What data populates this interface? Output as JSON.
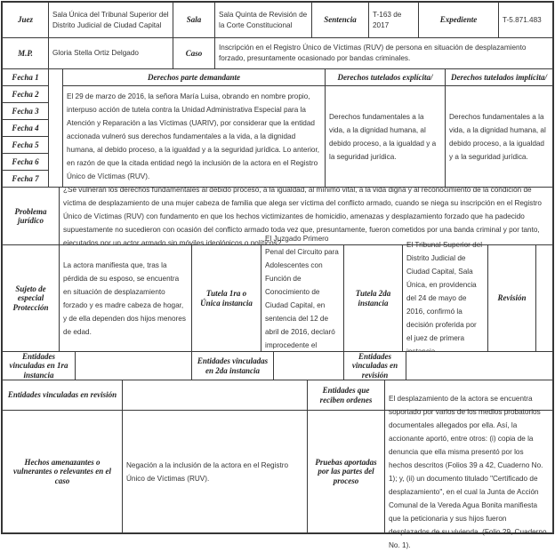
{
  "header": {
    "juez_label": "Juez",
    "juez_value": "Sala Única del Tribunal Superior del Distrito Judicial de Ciudad Capital",
    "sala_label": "Sala",
    "sala_value": "Sala Quinta de Revisión de la Corte Constitucional",
    "sentencia_label": "Sentencia",
    "sentencia_value": "T-163 de 2017",
    "expediente_label": "Expediente",
    "expediente_value": "T-5.871.483",
    "mp_label": "M.P.",
    "mp_value": "Gloria Stella Ortiz Delgado",
    "caso_label": "Caso",
    "caso_value": "Inscripción en el Registro Único de Víctimas (RUV) de persona en situación de desplazamiento forzado, presuntamente ocasionado por bandas criminales."
  },
  "fechas": [
    "Fecha 1",
    "Fecha 2",
    "Fecha 3",
    "Fecha 4",
    "Fecha 5",
    "Fecha 6",
    "Fecha 7"
  ],
  "derechos": {
    "demandante_label": "Derechos parte demandante",
    "explicita_label": "Derechos tutelados explícita/",
    "implicita_label": "Derechos tutelados implícita/",
    "demandante_value": "El 29 de marzo de 2016, la señora María Luisa, obrando en nombre propio, interpuso acción de tutela contra la Unidad Administrativa Especial para la Atención y Reparación a las Víctimas (UARIV), por considerar que la entidad accionada vulneró sus derechos fundamentales a la vida, a la dignidad humana, al debido proceso, a la igualdad y a la seguridad jurídica. Lo anterior, en razón de que la citada entidad negó la inclusión de la actora en el Registro Único de Víctimas (RUV).",
    "explicita_value": "Derechos fundamentales a la vida, a la dignidad humana, al debido proceso, a la igualdad y a la seguridad jurídica.",
    "implicita_value": "Derechos fundamentales a la vida, a la dignidad humana, al debido proceso, a la igualdad y a la seguridad jurídica."
  },
  "problema": {
    "label": "Problema jurídico",
    "value": "¿Se vulneran los derechos fundamentales al debido proceso, a la igualdad, al mínimo vital, a la vida digna y al reconocimiento de la condición de víctima de desplazamiento de una mujer cabeza de familia que alega ser víctima del conflicto armado, cuando se niega su inscripción en el Registro Único de Víctimas (RUV) con fundamento en que los hechos victimizantes de homicidio, amenazas y desplazamiento forzado que ha padecido supuestamente no sucedieron con ocasión del conflicto armado toda vez que, presuntamente, fueron cometidos por una banda criminal y por tanto, ejecutados por un actor armado sin móviles ideológicos o políticos?"
  },
  "sujeto": {
    "label": "Sujeto de especial Protección",
    "value": "La actora manifiesta que, tras la pérdida de su esposo, se encuentra en situación de desplazamiento forzado y es madre cabeza de hogar, y de ella dependen dos hijos menores de edad.",
    "tutela1_label": "Tutela 1ra o Única instancia",
    "tutela1_value": "El Juzgado Primero Penal del Circuito para Adolescentes con Función de Conocimiento de Ciudad Capital, en sentencia del 12 de abril de 2016, declaró improcedente el amparo impetrado.",
    "tutela2_label": "Tutela 2da instancia",
    "tutela2_value": "El Tribunal Superior del Distrito Judicial de Ciudad Capital, Sala Única, en providencia del 24 de mayo de 2016, confirmó la decisión proferida por el juez de primera instancia.",
    "revision_label": "Revisión",
    "revision_value": ""
  },
  "entidades": {
    "primera_label": "Entidades vinculadas en 1ra instancia",
    "primera_value": "",
    "segunda_label": "Entidades vinculadas en 2da instancia",
    "segunda_value": "",
    "revision_label": "Entidades vinculadas en revisión",
    "revision_value": "",
    "revision2_label": "Entidades vinculadas en revisión",
    "revision2_value": "",
    "ordenes_label": "Entidades que reciben ordenes",
    "ordenes_value": ""
  },
  "hechos": {
    "label": "Hechos amenazantes o vulnerantes o relevantes en el caso",
    "value": "Negación a la inclusión de la actora en el Registro Único de Víctimas (RUV).",
    "pruebas_label": "Pruebas aportadas por las partes del proceso",
    "pruebas_value": "El desplazamiento de la actora se encuentra soportado por varios de los medios probatorios documentales allegados por ella. Así, la accionante aportó, entre otros: (i) copia de la denuncia que ella misma presentó por los hechos descritos (Folios 39 a 42, Cuaderno No. 1); y, (ii) un documento titulado \"Certificado de desplazamiento\", en el cual la Junta de Acción Comunal de la Vereda Agua Bonita manifiesta que la peticionaria y sus hijos fueron desplazados de su vivienda. (Folio 29, Cuaderno No. 1)."
  }
}
